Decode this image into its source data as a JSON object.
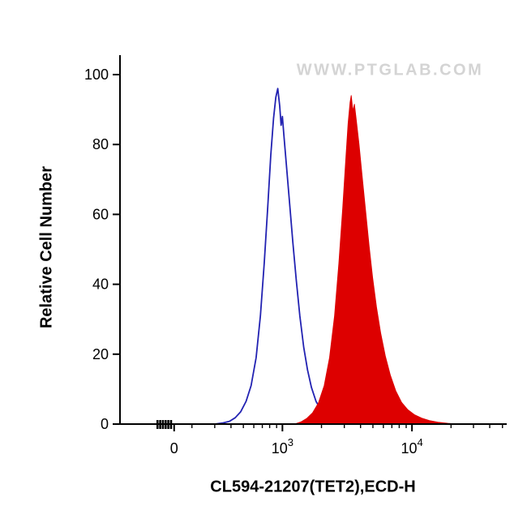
{
  "chart_data": {
    "type": "area",
    "subtype": "flow-cytometry-histogram",
    "title": "",
    "xlabel": "CL594-21207(TET2),ECD-H",
    "ylabel": "Relative Cell Number",
    "watermark": "WWW.PTGLAB.COM",
    "ylim": [
      0,
      100
    ],
    "y_ticks": [
      0,
      20,
      40,
      60,
      80,
      100
    ],
    "x_scale": "biexponential",
    "x_axis_note": "x positions of points and ticks are given as fraction of axis width",
    "grid": false,
    "legend": false,
    "x_major_ticks": [
      {
        "frac": 0.14,
        "base": "0",
        "exp": ""
      },
      {
        "frac": 0.42,
        "base": "10",
        "exp": "3"
      },
      {
        "frac": 0.755,
        "base": "10",
        "exp": "4"
      }
    ],
    "x_minor_ticks": [
      0.186,
      0.245,
      0.287,
      0.319,
      0.346,
      0.368,
      0.387,
      0.405,
      0.521,
      0.58,
      0.622,
      0.654,
      0.681,
      0.703,
      0.722,
      0.74,
      0.856,
      0.914,
      0.956,
      0.989
    ],
    "zero_region_marks": [
      0.097,
      0.104,
      0.111,
      0.118,
      0.125,
      0.132
    ],
    "colors": {
      "axis": "#000000",
      "blue_line": "#2222b2",
      "red_fill": "#dd0000",
      "watermark": "#d4d4d4"
    },
    "series": [
      {
        "name": "blue-open-histogram",
        "style": "open",
        "color": "#2222b2",
        "peak_y": 96,
        "peak_x_frac": 0.408,
        "points": [
          [
            0.245,
            0
          ],
          [
            0.265,
            0.3
          ],
          [
            0.283,
            0.8
          ],
          [
            0.298,
            1.8
          ],
          [
            0.312,
            3.5
          ],
          [
            0.326,
            6.5
          ],
          [
            0.339,
            11
          ],
          [
            0.352,
            19
          ],
          [
            0.363,
            31
          ],
          [
            0.373,
            46
          ],
          [
            0.382,
            62
          ],
          [
            0.39,
            77
          ],
          [
            0.397,
            87.5
          ],
          [
            0.403,
            93.5
          ],
          [
            0.408,
            96
          ],
          [
            0.413,
            91
          ],
          [
            0.4165,
            85.5
          ],
          [
            0.42,
            88
          ],
          [
            0.424,
            82.5
          ],
          [
            0.43,
            74.5
          ],
          [
            0.438,
            64
          ],
          [
            0.447,
            52
          ],
          [
            0.456,
            41
          ],
          [
            0.465,
            31
          ],
          [
            0.475,
            22
          ],
          [
            0.485,
            15.5
          ],
          [
            0.495,
            10.5
          ],
          [
            0.507,
            6.5
          ],
          [
            0.52,
            4
          ],
          [
            0.535,
            2.3
          ],
          [
            0.552,
            1.2
          ],
          [
            0.572,
            0.6
          ],
          [
            0.6,
            0.25
          ],
          [
            0.64,
            0
          ]
        ]
      },
      {
        "name": "red-filled-histogram",
        "style": "filled",
        "color": "#dd0000",
        "peak_y": 94,
        "peak_x_frac": 0.598,
        "points": [
          [
            0.452,
            0
          ],
          [
            0.468,
            0.6
          ],
          [
            0.483,
            1.6
          ],
          [
            0.498,
            3.2
          ],
          [
            0.513,
            6
          ],
          [
            0.528,
            11
          ],
          [
            0.542,
            19
          ],
          [
            0.555,
            31
          ],
          [
            0.566,
            46
          ],
          [
            0.576,
            62
          ],
          [
            0.584,
            76
          ],
          [
            0.59,
            86
          ],
          [
            0.595,
            92
          ],
          [
            0.598,
            94
          ],
          [
            0.602,
            89.5
          ],
          [
            0.606,
            91.5
          ],
          [
            0.611,
            87
          ],
          [
            0.618,
            80
          ],
          [
            0.626,
            71
          ],
          [
            0.635,
            61
          ],
          [
            0.644,
            51
          ],
          [
            0.653,
            42
          ],
          [
            0.663,
            33.5
          ],
          [
            0.674,
            26
          ],
          [
            0.686,
            19.5
          ],
          [
            0.699,
            14
          ],
          [
            0.713,
            9.5
          ],
          [
            0.728,
            6.2
          ],
          [
            0.744,
            4.1
          ],
          [
            0.761,
            2.7
          ],
          [
            0.78,
            1.7
          ],
          [
            0.8,
            1.0
          ],
          [
            0.822,
            0.5
          ],
          [
            0.848,
            0.2
          ],
          [
            0.872,
            0
          ]
        ]
      }
    ]
  }
}
